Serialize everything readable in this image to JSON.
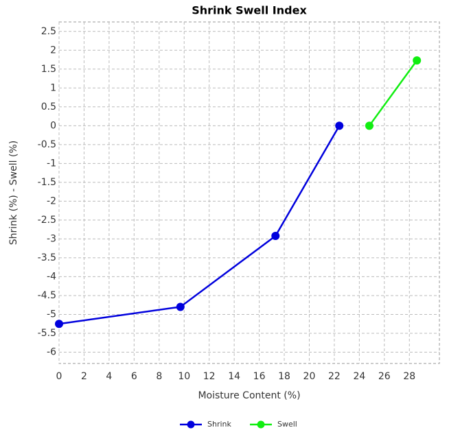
{
  "chart_data": {
    "type": "line",
    "title": "Shrink Swell Index",
    "xlabel": "Moisture Content (%)",
    "ylabel": "Shrink (%) - Swell (%)",
    "xlim": [
      0,
      30.4
    ],
    "ylim": [
      -6.3,
      2.75
    ],
    "xticks": [
      0,
      2,
      4,
      6,
      8,
      10,
      12,
      14,
      16,
      18,
      20,
      22,
      24,
      26,
      28
    ],
    "yticks": [
      2.5,
      2,
      1.5,
      1,
      0.5,
      0,
      -0.5,
      -1,
      -1.5,
      -2,
      -2.5,
      -3,
      -3.5,
      -4,
      -4.5,
      -5,
      -5.5,
      -6
    ],
    "grid": true,
    "legend": "bottom",
    "series": [
      {
        "name": "Shrink",
        "color": "#0000dd",
        "x": [
          0,
          9.7,
          17.3,
          22.4
        ],
        "values": [
          -5.25,
          -4.8,
          -2.92,
          0
        ]
      },
      {
        "name": "Swell",
        "color": "#11ee11",
        "x": [
          24.8,
          28.6
        ],
        "values": [
          0,
          1.73
        ]
      }
    ]
  }
}
